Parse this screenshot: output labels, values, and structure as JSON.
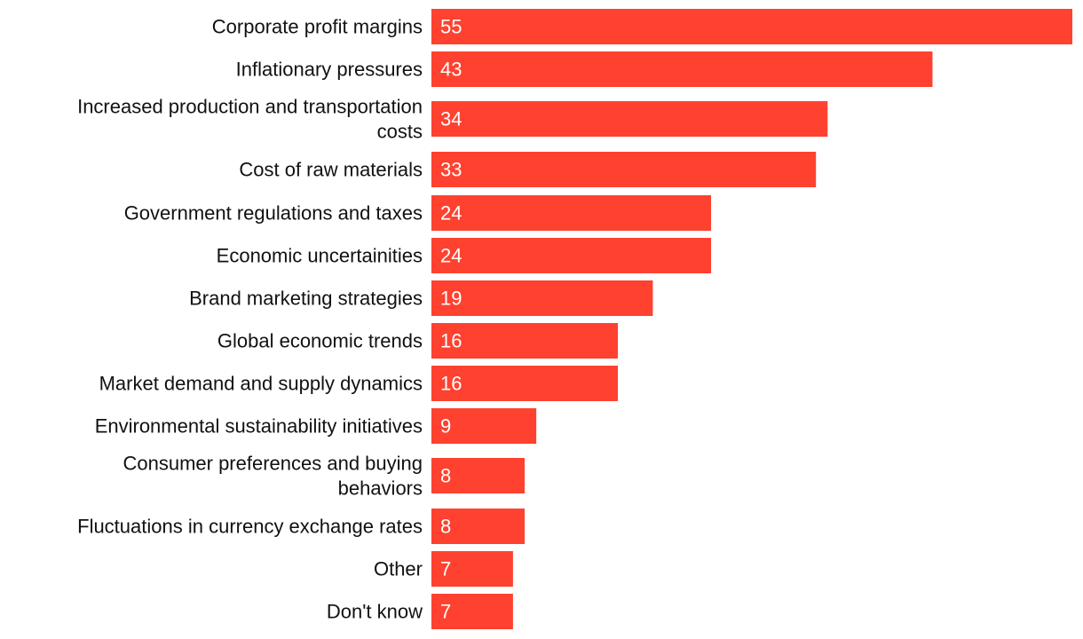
{
  "chart_data": {
    "type": "bar",
    "orientation": "horizontal",
    "title": "",
    "xlabel": "",
    "ylabel": "",
    "xlim": [
      0,
      55
    ],
    "grid": false,
    "legend": "none",
    "bar_color": "#ff4130",
    "label_color": "#111111",
    "value_label_color": "#ffffff",
    "categories": [
      [
        "Corporate profit margins"
      ],
      [
        "Inflationary pressures"
      ],
      [
        "Increased production and transportation",
        "costs"
      ],
      [
        "Cost of raw materials"
      ],
      [
        "Government regulations and taxes"
      ],
      [
        "Economic uncertainities"
      ],
      [
        "Brand marketing strategies"
      ],
      [
        "Global economic trends"
      ],
      [
        "Market demand and supply dynamics"
      ],
      [
        "Environmental sustainability initiatives"
      ],
      [
        "Consumer preferences and buying",
        "behaviors"
      ],
      [
        "Fluctuations in currency exchange rates"
      ],
      [
        "Other"
      ],
      [
        "Don't know"
      ]
    ],
    "values": [
      55,
      43,
      34,
      33,
      24,
      24,
      19,
      16,
      16,
      9,
      8,
      8,
      7,
      7
    ]
  }
}
